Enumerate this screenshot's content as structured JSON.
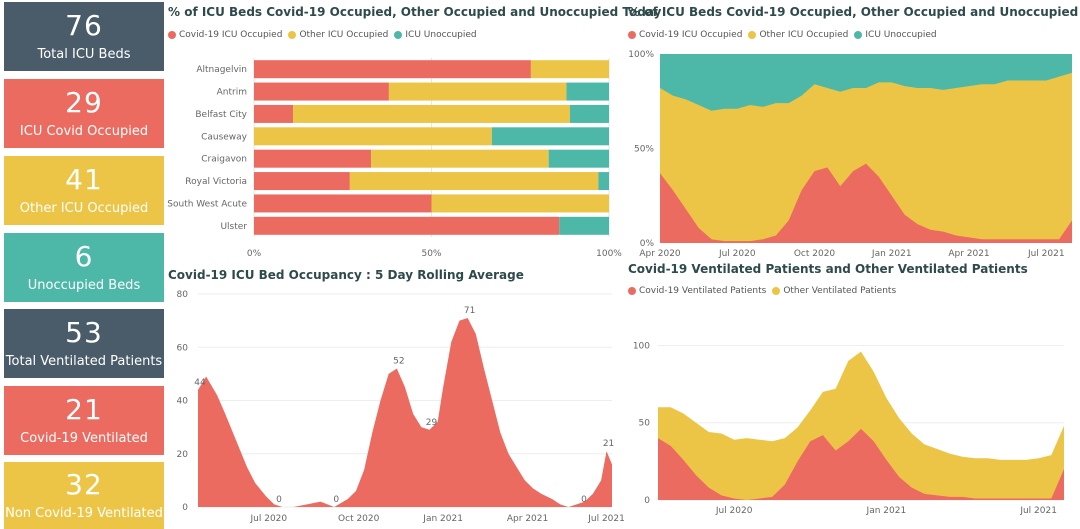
{
  "colors": {
    "covid": "#ec6b60",
    "other": "#ecc546",
    "unoccupied": "#4db8a8",
    "slate": "#4a5c6a"
  },
  "kpis": [
    {
      "value": "76",
      "label": "Total ICU Beds",
      "color": "slate"
    },
    {
      "value": "29",
      "label": "ICU Covid Occupied",
      "color": "red"
    },
    {
      "value": "41",
      "label": "Other ICU Occupied",
      "color": "yellow"
    },
    {
      "value": "6",
      "label": "Unoccupied Beds",
      "color": "teal"
    },
    {
      "value": "53",
      "label": "Total Ventilated Patients",
      "color": "slate"
    },
    {
      "value": "21",
      "label": "Covid-19 Ventilated",
      "color": "red"
    },
    {
      "value": "32",
      "label": "Non Covid-19 Ventilated",
      "color": "yellow"
    }
  ],
  "chart_data": [
    {
      "type": "bar",
      "orientation": "horizontal-stacked-100",
      "title": "% of ICU Beds Covid-19 Occupied, Other Occupied and Unoccupied Today",
      "legend": [
        "Covid-19 ICU Occupied",
        "Other ICU Occupied",
        "ICU Unoccupied"
      ],
      "categories": [
        "Altnagelvin",
        "Antrim",
        "Belfast City",
        "Causeway",
        "Craigavon",
        "Royal Victoria",
        "South West Acute",
        "Ulster"
      ],
      "series": [
        {
          "name": "Covid-19 ICU Occupied",
          "values": [
            78,
            38,
            11,
            0,
            33,
            27,
            50,
            86
          ]
        },
        {
          "name": "Other ICU Occupied",
          "values": [
            22,
            50,
            78,
            67,
            50,
            70,
            50,
            0
          ]
        },
        {
          "name": "ICU Unoccupied",
          "values": [
            0,
            12,
            11,
            33,
            17,
            3,
            0,
            14
          ]
        }
      ],
      "xticks": [
        "0%",
        "50%",
        "100%"
      ]
    },
    {
      "type": "area",
      "title": "% of ICU Beds Covid-19 Occupied, Other Occupied and Unoccupied",
      "legend": [
        "Covid-19 ICU Occupied",
        "Other ICU Occupied",
        "ICU Unoccupied"
      ],
      "xticks": [
        "Apr 2020",
        "Jul 2020",
        "Oct 2020",
        "Jan 2021",
        "Apr 2021",
        "Jul 2021"
      ],
      "yticks": [
        "0%",
        "50%",
        "100%"
      ],
      "x": [
        0,
        0.5,
        1,
        1.5,
        2,
        2.5,
        3,
        3.5,
        4,
        4.5,
        5,
        5.5,
        6,
        6.5,
        7,
        7.5,
        8,
        8.5,
        9,
        9.5,
        10,
        10.5,
        11,
        11.5,
        12,
        12.5,
        13,
        13.5,
        14,
        14.5,
        15,
        15.5,
        16
      ],
      "covid_pct": [
        37,
        28,
        18,
        8,
        2,
        1,
        1,
        1,
        2,
        4,
        12,
        28,
        38,
        40,
        30,
        38,
        42,
        35,
        25,
        15,
        10,
        7,
        6,
        4,
        3,
        2,
        2,
        2,
        2,
        2,
        2,
        2,
        12
      ],
      "other_pct": [
        45,
        50,
        58,
        65,
        68,
        70,
        70,
        72,
        70,
        70,
        62,
        50,
        46,
        42,
        50,
        44,
        40,
        50,
        60,
        68,
        72,
        75,
        75,
        78,
        80,
        82,
        82,
        84,
        84,
        84,
        84,
        86,
        78
      ]
    },
    {
      "type": "area",
      "title": "Covid-19 ICU Bed Occupancy : 5 Day Rolling Average",
      "yticks": [
        0,
        20,
        40,
        60,
        80
      ],
      "ylim": [
        0,
        80
      ],
      "xticks": [
        "Jul 2020",
        "Oct 2020",
        "Jan 2021",
        "Apr 2021",
        "Jul 2021"
      ],
      "x": [
        0,
        0.3,
        0.7,
        1,
        1.4,
        1.8,
        2.1,
        2.5,
        2.8,
        3.1,
        3.5,
        4,
        4.5,
        5,
        5.5,
        5.8,
        6.1,
        6.4,
        6.7,
        7,
        7.3,
        7.6,
        7.9,
        8.2,
        8.5,
        8.8,
        9,
        9.3,
        9.6,
        9.9,
        10.2,
        10.5,
        10.8,
        11.1,
        11.4,
        11.7,
        12,
        12.3,
        12.6,
        13,
        13.3,
        13.6,
        13.9,
        14.2,
        14.5,
        14.8,
        15,
        15.2
      ],
      "values": [
        44,
        49,
        42,
        35,
        25,
        15,
        9,
        4,
        1,
        0,
        0,
        1,
        2,
        0,
        3,
        6,
        14,
        28,
        40,
        50,
        52,
        45,
        35,
        30,
        29,
        32,
        45,
        62,
        70,
        71,
        65,
        52,
        40,
        28,
        20,
        15,
        10,
        7,
        5,
        3,
        1,
        0,
        1,
        2,
        5,
        10,
        21,
        16
      ],
      "annotations": [
        {
          "x": 0,
          "value": 44,
          "label": "44"
        },
        {
          "x": 2.9,
          "value": 0,
          "label": "0"
        },
        {
          "x": 5,
          "value": 0,
          "label": "0"
        },
        {
          "x": 7.3,
          "value": 52,
          "label": "52"
        },
        {
          "x": 8.5,
          "value": 29,
          "label": "29"
        },
        {
          "x": 9.9,
          "value": 71,
          "label": "71"
        },
        {
          "x": 14.1,
          "value": 0,
          "label": "0"
        },
        {
          "x": 15,
          "value": 21,
          "label": "21"
        }
      ]
    },
    {
      "type": "area",
      "title": "Covid-19 Ventilated Patients and Other Ventilated Patients",
      "legend": [
        "Covid-19 Ventilated Patients",
        "Other Ventilated Patients"
      ],
      "yticks": [
        0,
        50,
        100
      ],
      "ylim": [
        0,
        100
      ],
      "xticks": [
        "Jul 2020",
        "Jan 2021",
        "Jul 2021"
      ],
      "x": [
        0,
        0.5,
        1,
        1.5,
        2,
        2.5,
        3,
        3.5,
        4,
        4.5,
        5,
        5.5,
        6,
        6.5,
        7,
        7.5,
        8,
        8.5,
        9,
        9.5,
        10,
        10.5,
        11,
        11.5,
        12,
        12.5,
        13,
        13.5,
        14,
        14.5,
        15,
        15.5,
        16
      ],
      "covid": [
        40,
        35,
        26,
        16,
        8,
        3,
        1,
        0,
        1,
        2,
        10,
        25,
        38,
        42,
        32,
        38,
        46,
        38,
        26,
        15,
        8,
        4,
        3,
        2,
        2,
        1,
        1,
        1,
        1,
        1,
        1,
        1,
        20
      ],
      "other": [
        20,
        25,
        30,
        34,
        36,
        40,
        38,
        40,
        38,
        36,
        30,
        22,
        20,
        28,
        40,
        52,
        50,
        45,
        40,
        38,
        35,
        32,
        30,
        28,
        26,
        26,
        26,
        25,
        25,
        25,
        26,
        28,
        28
      ]
    }
  ]
}
